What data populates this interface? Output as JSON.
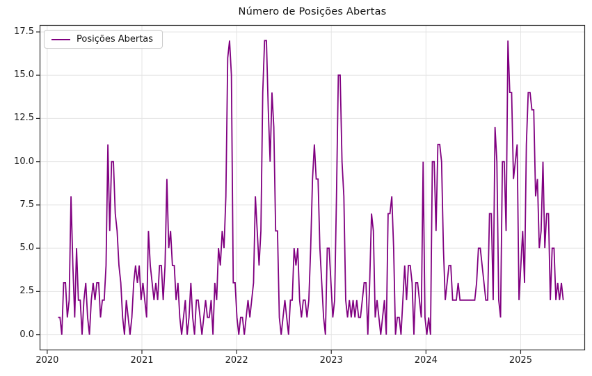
{
  "chart_data": {
    "type": "line",
    "title": "Número de Posições Abertas",
    "xlabel": "",
    "ylabel": "",
    "legend": {
      "label": "Posições Abertas",
      "position": "upper left"
    },
    "line_color": "#800080",
    "grid": true,
    "grid_color": "#e4e4e4",
    "spine_color": "#2b2b2b",
    "x_ticks": [
      2020,
      2021,
      2022,
      2023,
      2024,
      2025
    ],
    "x_tick_labels": [
      "2020",
      "2021",
      "2022",
      "2023",
      "2024",
      "2025"
    ],
    "y_ticks": [
      0.0,
      2.5,
      5.0,
      7.5,
      10.0,
      12.5,
      15.0,
      17.5
    ],
    "y_tick_labels": [
      "0.0",
      "2.5",
      "5.0",
      "7.5",
      "10.0",
      "12.5",
      "15.0",
      "17.5"
    ],
    "xlim": [
      2019.92,
      2025.68
    ],
    "ylim": [
      -0.9,
      17.9
    ],
    "x_start_year": 2020.115,
    "x_step_years": 0.01947,
    "series": [
      {
        "name": "Posições Abertas",
        "values": [
          1,
          1,
          0,
          3,
          3,
          1,
          2,
          8,
          4,
          1,
          5,
          2,
          2,
          0,
          2,
          3,
          1,
          0,
          2,
          3,
          2,
          3,
          3,
          1,
          2,
          2,
          4,
          11,
          6,
          10,
          10,
          7,
          6,
          4,
          3,
          1,
          0,
          2,
          1,
          0,
          1,
          3,
          4,
          3,
          4,
          2,
          3,
          2,
          1,
          6,
          4,
          3,
          2,
          3,
          2,
          4,
          4,
          2,
          4,
          9,
          5,
          6,
          4,
          4,
          2,
          3,
          1,
          0,
          1,
          2,
          0,
          1,
          3,
          1,
          0,
          2,
          2,
          1,
          0,
          1,
          2,
          1,
          1,
          2,
          0,
          3,
          2,
          5,
          4,
          6,
          5,
          8,
          16,
          17,
          15,
          3,
          3,
          1,
          0,
          1,
          1,
          0,
          1,
          2,
          1,
          2,
          3,
          8,
          6,
          4,
          6,
          14,
          17,
          17,
          13,
          10,
          14,
          12,
          6,
          6,
          1,
          0,
          1,
          2,
          1,
          0,
          2,
          2,
          5,
          4,
          5,
          2,
          1,
          2,
          2,
          1,
          2,
          5,
          9,
          11,
          9,
          9,
          5,
          3,
          1,
          0,
          5,
          5,
          3,
          1,
          2,
          8,
          15,
          15,
          10,
          8,
          2,
          1,
          2,
          1,
          2,
          1,
          2,
          1,
          1,
          2,
          3,
          3,
          0,
          3,
          7,
          6,
          1,
          2,
          1,
          0,
          1,
          2,
          0,
          7,
          7,
          8,
          5,
          0,
          1,
          1,
          0,
          2,
          4,
          2,
          4,
          4,
          3,
          0,
          3,
          3,
          2,
          1,
          10,
          1,
          0,
          1,
          0,
          10,
          10,
          6,
          11,
          11,
          10,
          5,
          2,
          3,
          4,
          4,
          2,
          2,
          2,
          3,
          2,
          2,
          2,
          2,
          2,
          2,
          2,
          2,
          2,
          3,
          5,
          5,
          4,
          3,
          2,
          2,
          7,
          7,
          2,
          12,
          10,
          2,
          1,
          10,
          10,
          6,
          17,
          14,
          14,
          9,
          10,
          11,
          2,
          4,
          6,
          3,
          11,
          14,
          14,
          13,
          13,
          8,
          9,
          5,
          6,
          10,
          5,
          7,
          7,
          2,
          5,
          5,
          2,
          3,
          2,
          3,
          2
        ]
      }
    ]
  }
}
